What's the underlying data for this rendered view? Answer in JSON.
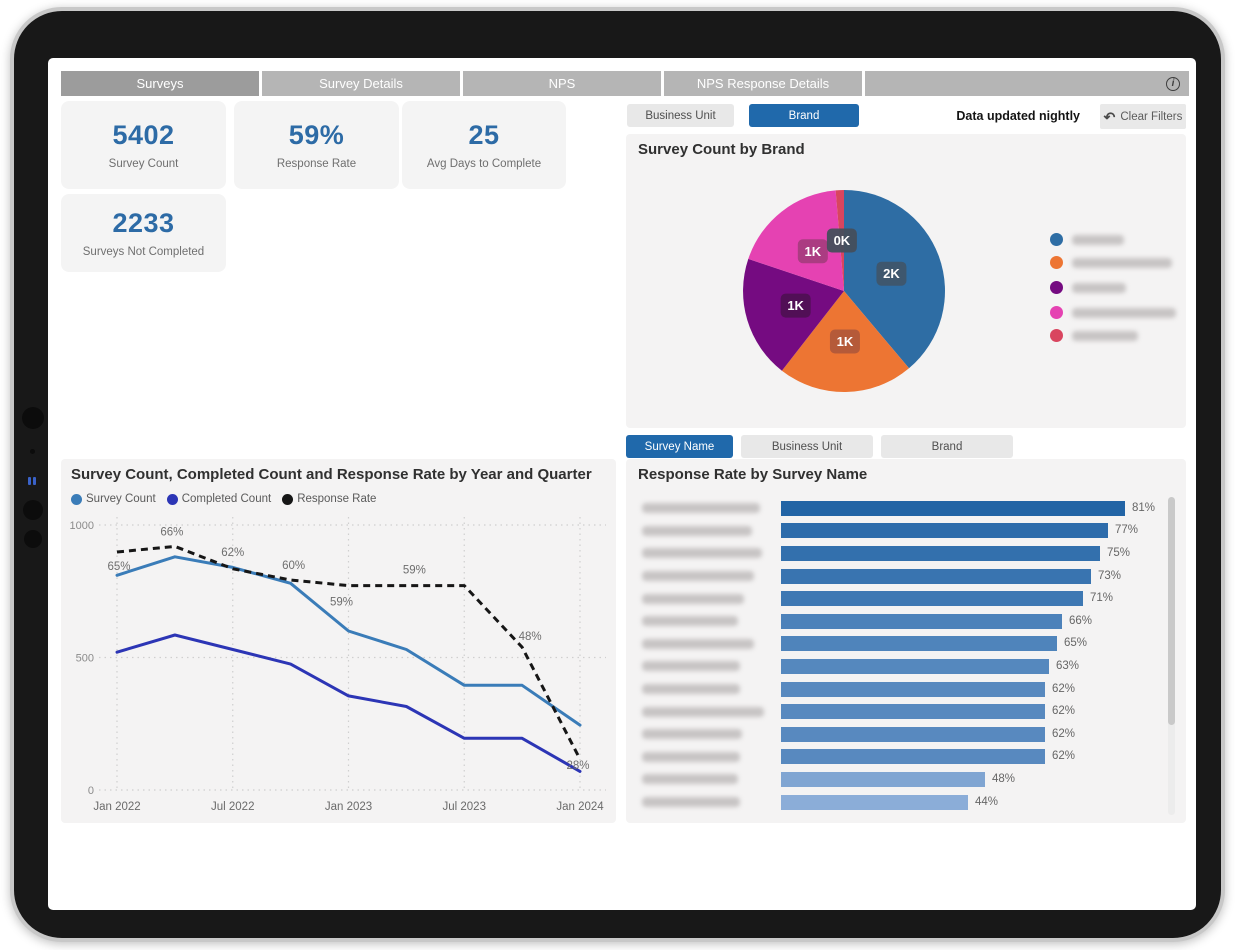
{
  "tab_bar": {
    "tabs": [
      {
        "label": "Surveys",
        "active": true
      },
      {
        "label": "Survey Details",
        "active": false
      },
      {
        "label": "NPS",
        "active": false
      },
      {
        "label": "NPS Response Details",
        "active": false
      }
    ],
    "info_icon_glyph": "i"
  },
  "kpi_cards": [
    {
      "value": "5402",
      "label": "Survey Count"
    },
    {
      "value": "59%",
      "label": "Response Rate"
    },
    {
      "value": "25",
      "label": "Avg Days to Complete"
    },
    {
      "value": "2233",
      "label": "Surveys Not Completed"
    }
  ],
  "filter_bar": {
    "buttons": [
      {
        "label": "Business Unit",
        "active": false
      },
      {
        "label": "Brand",
        "active": true
      }
    ],
    "note": "Data updated nightly",
    "clear_filters_label": "Clear Filters",
    "undo_icon_glyph": "↶"
  },
  "slicer_bar": {
    "buttons": [
      {
        "label": "Survey Name",
        "active": true
      },
      {
        "label": "Business Unit",
        "active": false
      },
      {
        "label": "Brand",
        "active": false
      }
    ]
  },
  "colors": {
    "active_button": "#2069ab",
    "inactive_button": "#e8e8e8",
    "kpi_value": "#2d6ba6",
    "tab_active": "#9c9c9c",
    "tab_inactive": "#b5b5b5"
  },
  "chart_data": [
    {
      "id": "pie",
      "type": "pie",
      "title": "Survey Count by Brand",
      "values": [
        2100,
        1170,
        1060,
        1000,
        72
      ],
      "labels": [
        "2K",
        "1K",
        "1K",
        "1K",
        "0K"
      ],
      "colors": [
        "#2e6da4",
        "#ed7533",
        "#750b81",
        "#e542b2",
        "#d9455f"
      ],
      "label_chip_colors": [
        "#3f566b",
        "#b2593a",
        "#4f1053",
        "#a83c80",
        "#454f5c"
      ],
      "legend_position": "right",
      "legend_labels_redacted": true,
      "legend_blur_widths": [
        52,
        100,
        54,
        104,
        66
      ]
    },
    {
      "id": "line",
      "type": "line",
      "title": "Survey Count, Completed Count and Response Rate by Year and Quarter",
      "x": [
        "Jan 2022",
        "Apr 2022",
        "Jul 2022",
        "Oct 2022",
        "Jan 2023",
        "Apr 2023",
        "Jul 2023",
        "Oct 2023",
        "Jan 2024"
      ],
      "x_axis_ticks": [
        "Jan 2022",
        "Jul 2022",
        "Jan 2023",
        "Jul 2023",
        "Jan 2024"
      ],
      "ylim": [
        0,
        1000
      ],
      "y_ticks": [
        "0",
        "500",
        "1000"
      ],
      "grid": "dotted",
      "legend_position": "top-left",
      "series": [
        {
          "name": "Survey Count",
          "color": "#3a7cb8",
          "style": "solid",
          "axis": "count",
          "values": [
            810,
            880,
            840,
            780,
            600,
            530,
            395,
            395,
            245
          ]
        },
        {
          "name": "Completed Count",
          "color": "#2c35b5",
          "style": "solid",
          "axis": "count",
          "values": [
            520,
            585,
            530,
            475,
            355,
            315,
            195,
            195,
            70
          ]
        },
        {
          "name": "Response Rate",
          "color": "#161616",
          "style": "dashed",
          "axis": "percent",
          "values": [
            65,
            66,
            62,
            60,
            59,
            59,
            59,
            48,
            28
          ],
          "point_labels": [
            {
              "i": 0,
              "text": "65%"
            },
            {
              "i": 1,
              "text": "66%"
            },
            {
              "i": 2,
              "text": "62%"
            },
            {
              "i": 3,
              "text": "60%"
            },
            {
              "i": 4,
              "text": "59%"
            },
            {
              "i": 5,
              "text": "59%"
            },
            {
              "i": 7,
              "text": "48%"
            },
            {
              "i": 8,
              "text": "28%"
            }
          ]
        }
      ]
    },
    {
      "id": "bar",
      "type": "bar",
      "title": "Response Rate by Survey Name",
      "orientation": "horizontal",
      "value_suffix": "%",
      "values": [
        81,
        77,
        75,
        73,
        71,
        66,
        65,
        63,
        62,
        62,
        62,
        62,
        48,
        44
      ],
      "xlim": [
        0,
        100
      ],
      "categories_redacted": true,
      "category_blur_widths": [
        118,
        110,
        120,
        112,
        102,
        96,
        112,
        98,
        98,
        122,
        100,
        98,
        96,
        98
      ],
      "bar_color_max": "#2264a5",
      "bar_color_min": "#8badd8"
    }
  ]
}
